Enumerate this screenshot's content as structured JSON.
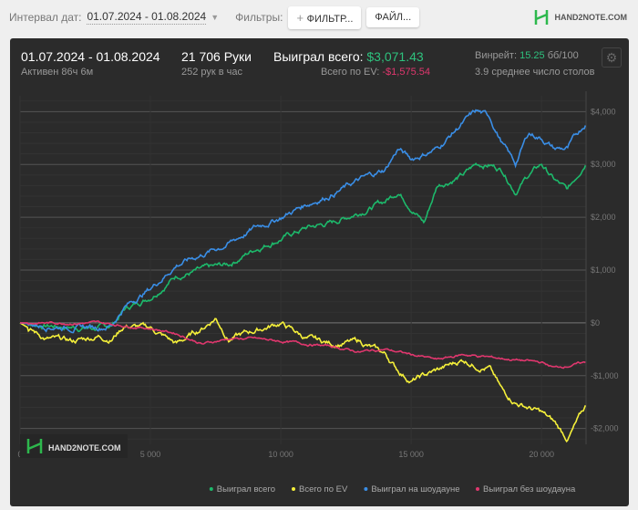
{
  "topbar": {
    "interval_label": "Интервал дат:",
    "interval_value": "01.07.2024 - 01.08.2024",
    "filters_label": "Фильтры:",
    "filter_button": "ФИЛЬТР...",
    "files_button": "ФАЙЛ...",
    "logo": "HAND2NOTE.COM"
  },
  "summary": {
    "period": "01.07.2024 - 01.08.2024",
    "active": "Активен 86ч 6м",
    "hands": "21 706 Руки",
    "hands_per_hour": "252 рук в час",
    "won_label": "Выиграл всего:",
    "won_value": "$3,071.43",
    "ev_label": "Всего по EV:",
    "ev_value": "-$1,575.54",
    "winrate_label": "Винрейт:",
    "winrate_value": "15.25",
    "winrate_unit": "бб/100",
    "tables": "3.9 среднее число столов"
  },
  "colors": {
    "green": "#1db96b",
    "yellow": "#f5f03a",
    "blue": "#3a8ee6",
    "pink": "#e0376e",
    "positive": "#2ec27e",
    "negative": "#e0376e"
  },
  "chart_data": {
    "type": "line",
    "watermark": "HAND2NOTE.COM",
    "xlim": [
      0,
      21706
    ],
    "ylim": [
      -2300,
      4300
    ],
    "xticks": [
      0,
      5000,
      10000,
      15000,
      20000
    ],
    "xtick_labels": [
      "0",
      "5 000",
      "10 000",
      "15 000",
      "20 000"
    ],
    "yticks": [
      4000,
      3000,
      2000,
      1000,
      0,
      -1000,
      -2000
    ],
    "ytick_labels": [
      "$4,000",
      "$3,000",
      "$2,000",
      "$1,000",
      "$0",
      "-$1,000",
      "-$2,000"
    ],
    "legend_position": "bottom-right",
    "series": [
      {
        "name": "Выиграл всего",
        "color": "#1db96b",
        "points": [
          [
            0,
            0
          ],
          [
            1000,
            -50
          ],
          [
            2000,
            -80
          ],
          [
            3000,
            -100
          ],
          [
            3500,
            -60
          ],
          [
            4000,
            250
          ],
          [
            5000,
            500
          ],
          [
            5500,
            700
          ],
          [
            6000,
            900
          ],
          [
            7000,
            1000
          ],
          [
            8000,
            1100
          ],
          [
            9000,
            1400
          ],
          [
            10000,
            1600
          ],
          [
            11000,
            1800
          ],
          [
            12000,
            1900
          ],
          [
            13000,
            2100
          ],
          [
            14000,
            2300
          ],
          [
            14500,
            2500
          ],
          [
            15000,
            2200
          ],
          [
            15500,
            1900
          ],
          [
            16000,
            2600
          ],
          [
            17000,
            2800
          ],
          [
            17500,
            3000
          ],
          [
            18000,
            3000
          ],
          [
            18500,
            2900
          ],
          [
            19000,
            2500
          ],
          [
            19500,
            2800
          ],
          [
            20000,
            3000
          ],
          [
            20500,
            2700
          ],
          [
            21000,
            2500
          ],
          [
            21706,
            3071
          ]
        ]
      },
      {
        "name": "Всего по EV",
        "color": "#f5f03a",
        "points": [
          [
            0,
            0
          ],
          [
            1000,
            -300
          ],
          [
            2000,
            -350
          ],
          [
            3000,
            -250
          ],
          [
            3500,
            -300
          ],
          [
            4000,
            -50
          ],
          [
            5000,
            -100
          ],
          [
            6000,
            -400
          ],
          [
            7000,
            -100
          ],
          [
            7500,
            100
          ],
          [
            8000,
            -300
          ],
          [
            9000,
            -150
          ],
          [
            10000,
            0
          ],
          [
            11000,
            -300
          ],
          [
            12000,
            -400
          ],
          [
            13000,
            -350
          ],
          [
            14000,
            -600
          ],
          [
            14500,
            -900
          ],
          [
            15000,
            -1100
          ],
          [
            16000,
            -900
          ],
          [
            17000,
            -700
          ],
          [
            17500,
            -800
          ],
          [
            18000,
            -850
          ],
          [
            18500,
            -1300
          ],
          [
            19000,
            -1500
          ],
          [
            19500,
            -1600
          ],
          [
            20000,
            -1700
          ],
          [
            20500,
            -1900
          ],
          [
            21000,
            -2200
          ],
          [
            21706,
            -1576
          ]
        ]
      },
      {
        "name": "Выиграл на шоудауне",
        "color": "#3a8ee6",
        "points": [
          [
            0,
            0
          ],
          [
            1000,
            -50
          ],
          [
            2000,
            -80
          ],
          [
            3000,
            -80
          ],
          [
            3500,
            -40
          ],
          [
            4000,
            300
          ],
          [
            5000,
            650
          ],
          [
            6000,
            1100
          ],
          [
            7000,
            1300
          ],
          [
            8000,
            1500
          ],
          [
            9000,
            1800
          ],
          [
            10000,
            2000
          ],
          [
            11000,
            2250
          ],
          [
            12000,
            2450
          ],
          [
            13000,
            2700
          ],
          [
            14000,
            2900
          ],
          [
            14500,
            3300
          ],
          [
            15000,
            3100
          ],
          [
            16000,
            3300
          ],
          [
            17000,
            3800
          ],
          [
            17500,
            4000
          ],
          [
            18000,
            3900
          ],
          [
            18500,
            3400
          ],
          [
            19000,
            3000
          ],
          [
            19500,
            3600
          ],
          [
            20000,
            3500
          ],
          [
            20500,
            3300
          ],
          [
            21000,
            3300
          ],
          [
            21706,
            3800
          ]
        ]
      },
      {
        "name": "Выиграл без шоудауна",
        "color": "#e0376e",
        "points": [
          [
            0,
            0
          ],
          [
            3000,
            0
          ],
          [
            4000,
            -50
          ],
          [
            5000,
            -100
          ],
          [
            6000,
            -200
          ],
          [
            7000,
            -400
          ],
          [
            8000,
            -300
          ],
          [
            9000,
            -300
          ],
          [
            10000,
            -350
          ],
          [
            11000,
            -400
          ],
          [
            12000,
            -450
          ],
          [
            13000,
            -550
          ],
          [
            14000,
            -500
          ],
          [
            15000,
            -600
          ],
          [
            16000,
            -700
          ],
          [
            17000,
            -600
          ],
          [
            18000,
            -650
          ],
          [
            19000,
            -700
          ],
          [
            20000,
            -750
          ],
          [
            20500,
            -850
          ],
          [
            21706,
            -750
          ]
        ]
      }
    ]
  }
}
